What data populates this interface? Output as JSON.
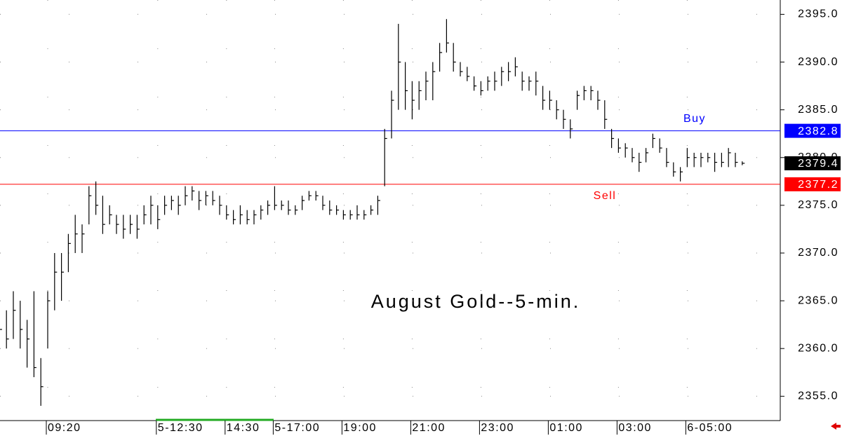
{
  "chart_data": {
    "type": "ohlc",
    "title": "August Gold--5-min.",
    "categories": [
      null,
      null,
      null,
      null,
      null,
      null,
      null,
      "09:20",
      null,
      null,
      null,
      null,
      null,
      null,
      null,
      null,
      null,
      null,
      null,
      null,
      null,
      null,
      null,
      "5-12:30",
      null,
      null,
      null,
      null,
      null,
      null,
      null,
      null,
      null,
      "14:30",
      null,
      null,
      null,
      null,
      null,
      null,
      "5-17:00",
      null,
      null,
      null,
      null,
      null,
      null,
      null,
      null,
      null,
      "19:00",
      null,
      null,
      null,
      null,
      null,
      null,
      null,
      null,
      null,
      "21:00",
      null,
      null,
      null,
      null,
      null,
      null,
      null,
      null,
      null,
      "23:00",
      null,
      null,
      null,
      null,
      null,
      null,
      null,
      null,
      null,
      "01:00",
      null,
      null,
      null,
      null,
      null,
      null,
      null,
      null,
      null,
      "03:00",
      null,
      null,
      null,
      null,
      null,
      null,
      null,
      null,
      null,
      "6-05:00",
      null,
      null,
      null,
      null,
      null,
      null,
      null,
      null
    ],
    "high": [
      2364,
      2364,
      2366,
      2365,
      2363,
      2366,
      2359,
      2366,
      2370,
      2370,
      2372,
      2374,
      2373,
      2377,
      2377.5,
      2376,
      2375,
      2374,
      2374,
      2374,
      2374,
      2375,
      2376,
      2375,
      2376,
      2376,
      2376,
      2377,
      2377,
      2376.5,
      2376.5,
      2376.5,
      2376,
      2375,
      2374.5,
      2375,
      2374.5,
      2374.5,
      2375,
      2375.5,
      2377,
      2375.5,
      2375.5,
      2375,
      2376,
      2376.5,
      2376.5,
      2376,
      2375.5,
      2375,
      2374.5,
      2374.5,
      2375,
      2374.5,
      2375,
      2376,
      2383,
      2387,
      2394,
      2390,
      2388,
      2388,
      2389,
      2390,
      2392,
      2394.5,
      2392,
      2390,
      2389.5,
      2388.5,
      2388,
      2388.5,
      2389,
      2389.5,
      2390,
      2390.5,
      2389,
      2388.5,
      2389,
      2387.5,
      2387,
      2386,
      2385,
      2384,
      2387,
      2387.5,
      2387.5,
      2387,
      2386,
      2383,
      2382,
      2381.5,
      2381,
      2380.5,
      2381,
      2382.5,
      2382,
      2381,
      2379.5,
      2379,
      2381,
      2380.5,
      2380.5,
      2380.5,
      2380.5,
      2380.5,
      2381,
      2380.5,
      2379.6
    ],
    "low": [
      2360,
      2360,
      2361,
      2360,
      2358,
      2357,
      2354,
      2360,
      2364,
      2365,
      2368,
      2370,
      2370,
      2373,
      2374,
      2372,
      2373,
      2372,
      2371.5,
      2372,
      2371.5,
      2373,
      2373,
      2372.5,
      2374,
      2374.5,
      2374,
      2375,
      2375.5,
      2374.5,
      2375,
      2375,
      2374,
      2373.5,
      2373,
      2373,
      2373,
      2373,
      2373.5,
      2374,
      2374.5,
      2374.5,
      2374,
      2374,
      2374.5,
      2375.5,
      2375.5,
      2374.5,
      2374,
      2374,
      2373.5,
      2373.5,
      2373.5,
      2373.5,
      2374,
      2374,
      2377,
      2382,
      2385,
      2385,
      2384,
      2385,
      2386,
      2386,
      2389,
      2391,
      2389,
      2388.5,
      2388,
      2387,
      2386.5,
      2387,
      2387,
      2387.5,
      2388,
      2388.5,
      2387,
      2387,
      2386.5,
      2385,
      2385,
      2384,
      2383,
      2382,
      2385,
      2386,
      2386,
      2385,
      2383,
      2381,
      2380.5,
      2380,
      2379.5,
      2378.5,
      2379.5,
      2381,
      2380.5,
      2379,
      2378,
      2377.5,
      2379,
      2379,
      2379,
      2379.5,
      2378.5,
      2379,
      2379,
      2379,
      2379.2
    ],
    "close": [
      2362,
      2361,
      2364,
      2362,
      2361,
      2358,
      2356,
      2365,
      2368,
      2368,
      2371,
      2372,
      2372,
      2376,
      2375,
      2373,
      2374,
      2373,
      2372.5,
      2373,
      2372.5,
      2374,
      2375,
      2373.5,
      2375,
      2375.5,
      2375,
      2376,
      2376.5,
      2375.5,
      2376,
      2375.5,
      2375,
      2374,
      2373.5,
      2374,
      2373.5,
      2374,
      2374.5,
      2375,
      2375,
      2375,
      2374.5,
      2374.5,
      2375.5,
      2376,
      2376,
      2375,
      2374.5,
      2374.5,
      2374,
      2374,
      2374,
      2374,
      2374.5,
      2375.5,
      2382,
      2386,
      2390,
      2387,
      2386,
      2387,
      2388,
      2389,
      2391,
      2392,
      2390,
      2389,
      2388.5,
      2387.5,
      2387,
      2388,
      2388,
      2389,
      2389,
      2389.5,
      2388,
      2388,
      2388,
      2386,
      2386,
      2385,
      2384,
      2383,
      2386.5,
      2387,
      2387,
      2386,
      2384,
      2382,
      2381,
      2381,
      2380,
      2379.5,
      2380.5,
      2382,
      2381,
      2379.5,
      2378.5,
      2378.5,
      2380,
      2380,
      2380,
      2380,
      2379.5,
      2379.5,
      2380.5,
      2379.5,
      2379.4
    ],
    "color": "#000000",
    "ylim": [
      2352.6,
      2396.5
    ],
    "yticks": [
      {
        "value": 2355,
        "label": "2355.0"
      },
      {
        "value": 2360,
        "label": "2360.0"
      },
      {
        "value": 2365,
        "label": "2365.0"
      },
      {
        "value": 2370,
        "label": "2370.0"
      },
      {
        "value": 2375,
        "label": "2375.0"
      },
      {
        "value": 2380,
        "label": "2380.0"
      },
      {
        "value": 2385,
        "label": "2385.0"
      },
      {
        "value": 2390,
        "label": "2390.0"
      },
      {
        "value": 2395,
        "label": "2395.0"
      }
    ],
    "grid": true,
    "lines": [
      {
        "label": "Buy",
        "value": 2382.8,
        "color": "#0000ff"
      },
      {
        "label": "Sell",
        "value": 2377.2,
        "color": "#ff0000"
      }
    ],
    "last": 2379.4
  }
}
